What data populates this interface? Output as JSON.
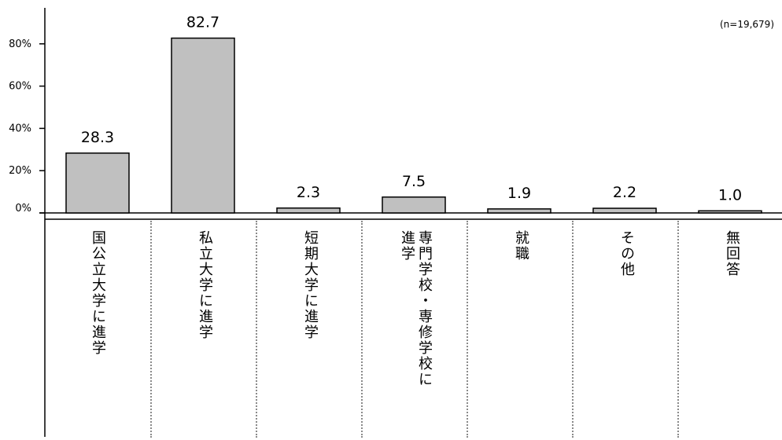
{
  "chart_data": {
    "type": "bar",
    "categories": [
      "国公立大学に進学",
      "私立大学に進学",
      "短期大学に進学",
      "専門学校・専修学校に進学",
      "就職",
      "その他",
      "無回答"
    ],
    "category_lines": [
      [
        "国公立大学に進学"
      ],
      [
        "私立大学に進学"
      ],
      [
        "短期大学に進学"
      ],
      [
        "専門学校・専修学校に",
        "進学"
      ],
      [
        "就職"
      ],
      [
        "その他"
      ],
      [
        "無回答"
      ]
    ],
    "values": [
      28.3,
      82.7,
      2.3,
      7.5,
      1.9,
      2.2,
      1.0
    ],
    "value_labels": [
      "28.3",
      "82.7",
      "2.3",
      "7.5",
      "1.9",
      "2.2",
      "1.0"
    ],
    "y_ticks": [
      "0%",
      "20%",
      "40%",
      "60%",
      "80%"
    ],
    "y_tick_values": [
      0,
      20,
      40,
      60,
      80
    ],
    "ylim": [
      0,
      100
    ],
    "note": "(n=19,679)",
    "colors": {
      "bar_fill": "#c0c0c0",
      "bar_stroke": "#000000",
      "axis": "#000000",
      "separator": "#8a8a8a"
    }
  }
}
